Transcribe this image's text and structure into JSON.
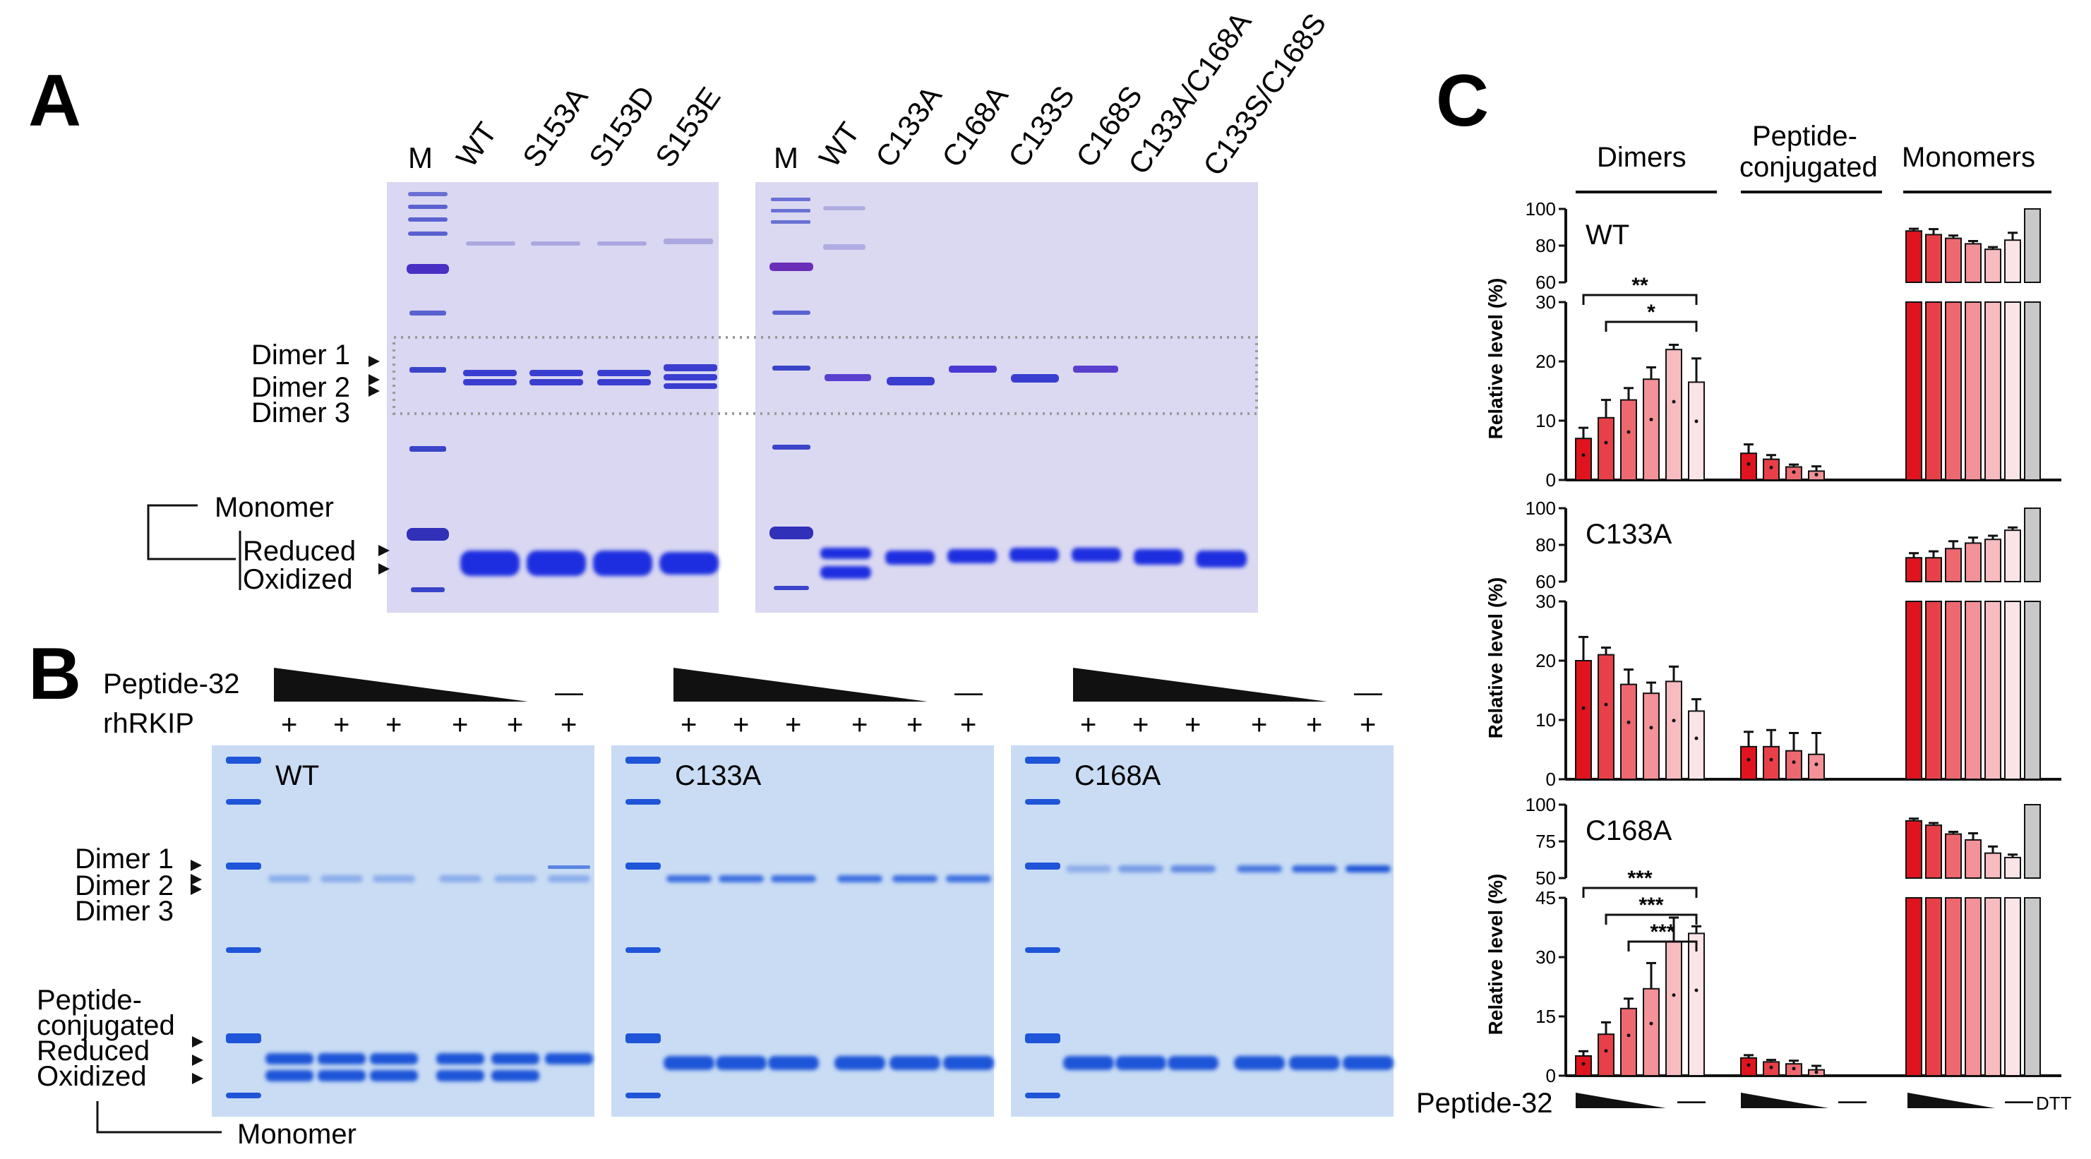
{
  "figure": {
    "panel_a": {
      "label": "A",
      "gel1_lanes": [
        "M",
        "WT",
        "S153A",
        "S153D",
        "S153E"
      ],
      "gel2_lanes": [
        "M",
        "WT",
        "C133A",
        "C168A",
        "C133S",
        "C168S",
        "C133A/C168A",
        "C133S/C168S"
      ],
      "band_labels": {
        "dimer1": "Dimer 1",
        "dimer2": "Dimer 2",
        "dimer3": "Dimer 3",
        "monomer": "Monomer",
        "reduced": "Reduced",
        "oxidized": "Oxidized"
      },
      "colors": {
        "gel_bg": "#d8d6f0",
        "band": "#2b3fd6",
        "band_faint": "#6f6fd8"
      }
    },
    "panel_b": {
      "label": "B",
      "row1_label": "Peptide-32",
      "row2_label": "rhRKIP",
      "plus": "+",
      "minus": "—",
      "gels": [
        {
          "name": "WT",
          "dimer_band": "split"
        },
        {
          "name": "C133A",
          "dimer_band": "single"
        },
        {
          "name": "C168A",
          "dimer_band": "rising"
        }
      ],
      "band_labels": {
        "dimer1": "Dimer 1",
        "dimer2": "Dimer 2",
        "dimer3": "Dimer 3",
        "peptide": "Peptide-",
        "conjugated": "conjugated",
        "reduced": "Reduced",
        "oxidized": "Oxidized",
        "monomer": "Monomer"
      },
      "colors": {
        "gel_bg": "#c9dcf4",
        "band": "#1f55d8"
      }
    },
    "panel_c": {
      "label": "C",
      "group_headers": {
        "dimers": "Dimers",
        "peptide": "Peptide-",
        "peptide2": "conjugated",
        "monomers": "Monomers"
      },
      "ylabel": "Relative level (%)",
      "bottom_label": "Peptide-32",
      "minus": "—",
      "dtt": "DTT",
      "colors": [
        "#e0141e",
        "#e84048",
        "#ee6870",
        "#f39298",
        "#f7bcc0",
        "#fbe4e6",
        "#ffffff",
        "#c8c8c8"
      ]
    }
  },
  "chart_data": [
    {
      "type": "bar",
      "title": "WT",
      "ylabel": "Relative level (%)",
      "categories": [
        "Dimers",
        "Peptide-conjugated",
        "Monomers"
      ],
      "ylim_lower": [
        0,
        30
      ],
      "ylim_upper": [
        60,
        100
      ],
      "yticks_lower": [
        "0",
        "10",
        "20",
        "30"
      ],
      "yticks_upper": [
        "60",
        "80",
        "100"
      ],
      "series": {
        "dimers": [
          7,
          10.5,
          13.5,
          17,
          22,
          16.5
        ],
        "dimers_err": [
          1.8,
          3,
          2,
          2,
          0.8,
          4
        ],
        "peptide": [
          4.5,
          3.5,
          2.2,
          1.5
        ],
        "peptide_err": [
          1.5,
          0.7,
          0.4,
          0.8
        ],
        "monomers": [
          88,
          86,
          84,
          81,
          78,
          83,
          100
        ],
        "monomers_err": [
          1.2,
          3,
          1.5,
          1.5,
          1.2,
          4,
          0
        ]
      },
      "annotations": [
        {
          "text": "**",
          "from_bar": 1,
          "to_bar": 6
        },
        {
          "text": "*",
          "from_bar": 2,
          "to_bar": 6
        }
      ]
    },
    {
      "type": "bar",
      "title": "C133A",
      "ylabel": "Relative level (%)",
      "categories": [
        "Dimers",
        "Peptide-conjugated",
        "Monomers"
      ],
      "ylim_lower": [
        0,
        30
      ],
      "ylim_upper": [
        60,
        100
      ],
      "yticks_lower": [
        "0",
        "10",
        "20",
        "30"
      ],
      "yticks_upper": [
        "60",
        "80",
        "100"
      ],
      "series": {
        "dimers": [
          20,
          21,
          16,
          14.5,
          16.5,
          11.5
        ],
        "dimers_err": [
          4,
          1.2,
          2.5,
          1.8,
          2.5,
          2
        ],
        "peptide": [
          5.5,
          5.5,
          4.8,
          4.2
        ],
        "peptide_err": [
          2.5,
          2.8,
          3,
          3.6
        ],
        "monomers": [
          73,
          73,
          78,
          81,
          83,
          88,
          100
        ],
        "monomers_err": [
          2.5,
          3.5,
          4,
          3,
          2,
          1.5,
          0
        ]
      },
      "annotations": []
    },
    {
      "type": "bar",
      "title": "C168A",
      "ylabel": "Relative level (%)",
      "categories": [
        "Dimers",
        "Peptide-conjugated",
        "Monomers"
      ],
      "ylim_lower": [
        0,
        45
      ],
      "ylim_upper": [
        50,
        100
      ],
      "yticks_lower": [
        "0",
        "15",
        "30",
        "45"
      ],
      "yticks_upper": [
        "50",
        "75",
        "100"
      ],
      "series": {
        "dimers": [
          5,
          10.5,
          17,
          22,
          34,
          36
        ],
        "dimers_err": [
          1.2,
          3,
          2.5,
          6.5,
          6,
          1.8
        ],
        "peptide": [
          4.5,
          3.5,
          3,
          1.5
        ],
        "peptide_err": [
          0.7,
          0.5,
          0.8,
          1
        ],
        "monomers": [
          89,
          86,
          80,
          76,
          67,
          64,
          100
        ],
        "monomers_err": [
          1.5,
          1.5,
          1.5,
          4.5,
          4.5,
          2,
          0
        ]
      },
      "annotations": [
        {
          "text": "***",
          "from_bar": 1,
          "to_bar": 6
        },
        {
          "text": "***",
          "from_bar": 2,
          "to_bar": 6
        },
        {
          "text": "***",
          "from_bar": 3,
          "to_bar": 6
        }
      ]
    }
  ]
}
